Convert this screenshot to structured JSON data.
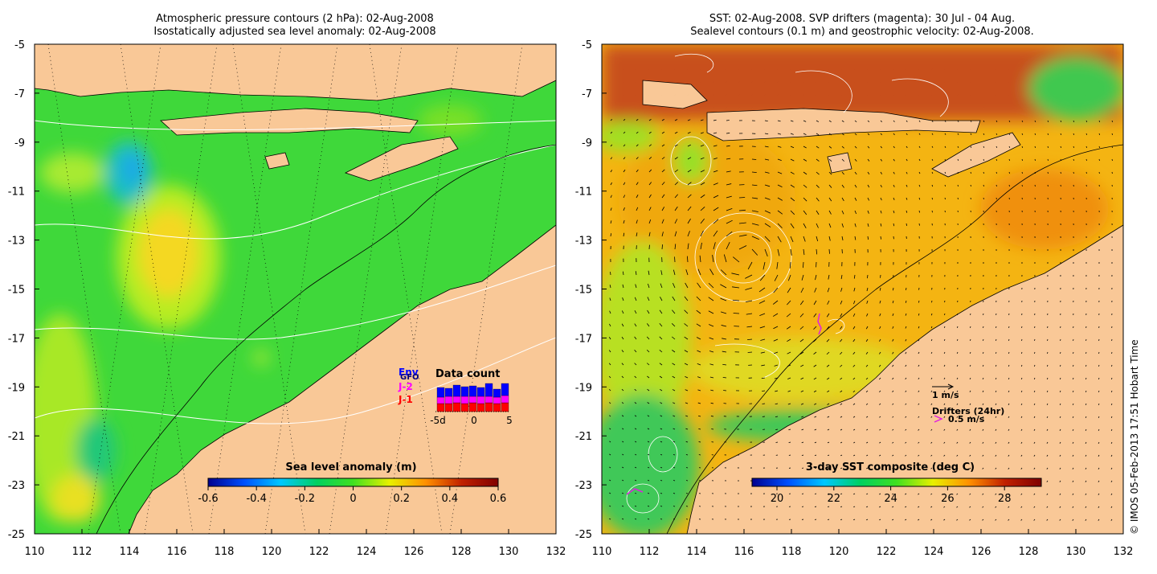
{
  "left_panel": {
    "title_line1": "Atmospheric pressure contours (2 hPa): 02-Aug-2008",
    "title_line2": "Isostatically adjusted sea level anomaly: 02-Aug-2008",
    "colorbar": {
      "label": "Sea level anomaly (m)",
      "ticks": [
        "-0.6",
        "-0.4",
        "-0.2",
        "0",
        "0.2",
        "0.4",
        "0.6"
      ],
      "colors": [
        "#00008f",
        "#0050ff",
        "#00c8ff",
        "#00d060",
        "#40e020",
        "#e8f000",
        "#ff9000",
        "#c02000",
        "#800000"
      ]
    },
    "inset": {
      "title": "Data count",
      "legend": [
        "Env",
        "GFO",
        "J-2",
        "J-1"
      ],
      "legend_colors": [
        "#0000ff",
        "#000080",
        "#ff00ff",
        "#ff0000"
      ],
      "xticks": [
        "-5d",
        "0",
        "5"
      ]
    }
  },
  "right_panel": {
    "title_line1": "SST: 02-Aug-2008. SVP drifters (magenta): 30 Jul - 04 Aug.",
    "title_line2": "Sealevel contours (0.1 m) and geostrophic velocity: 02-Aug-2008.",
    "colorbar": {
      "label": "3-day SST composite (deg C)",
      "ticks": [
        "20",
        "22",
        "24",
        "26",
        "28"
      ],
      "colors": [
        "#00008f",
        "#0050ff",
        "#00c8ff",
        "#00d060",
        "#40e020",
        "#e8f000",
        "#ff9000",
        "#c02000",
        "#800000"
      ]
    },
    "velocity_scale": "1 m/s",
    "drifters_label": "Drifters (24hr)",
    "drifter_scale": "0.5 m/s"
  },
  "axes": {
    "x_ticks": [
      "110",
      "112",
      "114",
      "116",
      "118",
      "120",
      "122",
      "124",
      "126",
      "128",
      "130",
      "132"
    ],
    "y_ticks": [
      "-5",
      "-7",
      "-9",
      "-11",
      "-13",
      "-15",
      "-17",
      "-19",
      "-21",
      "-23",
      "-25"
    ]
  },
  "credit": "© IMOS 05-Feb-2013 17:51 Hobart Time",
  "colors": {
    "land": "#f9c897",
    "ocean_left": "#40d838",
    "ocean_right": "#f4b810",
    "north_warm": "#c8501a"
  }
}
